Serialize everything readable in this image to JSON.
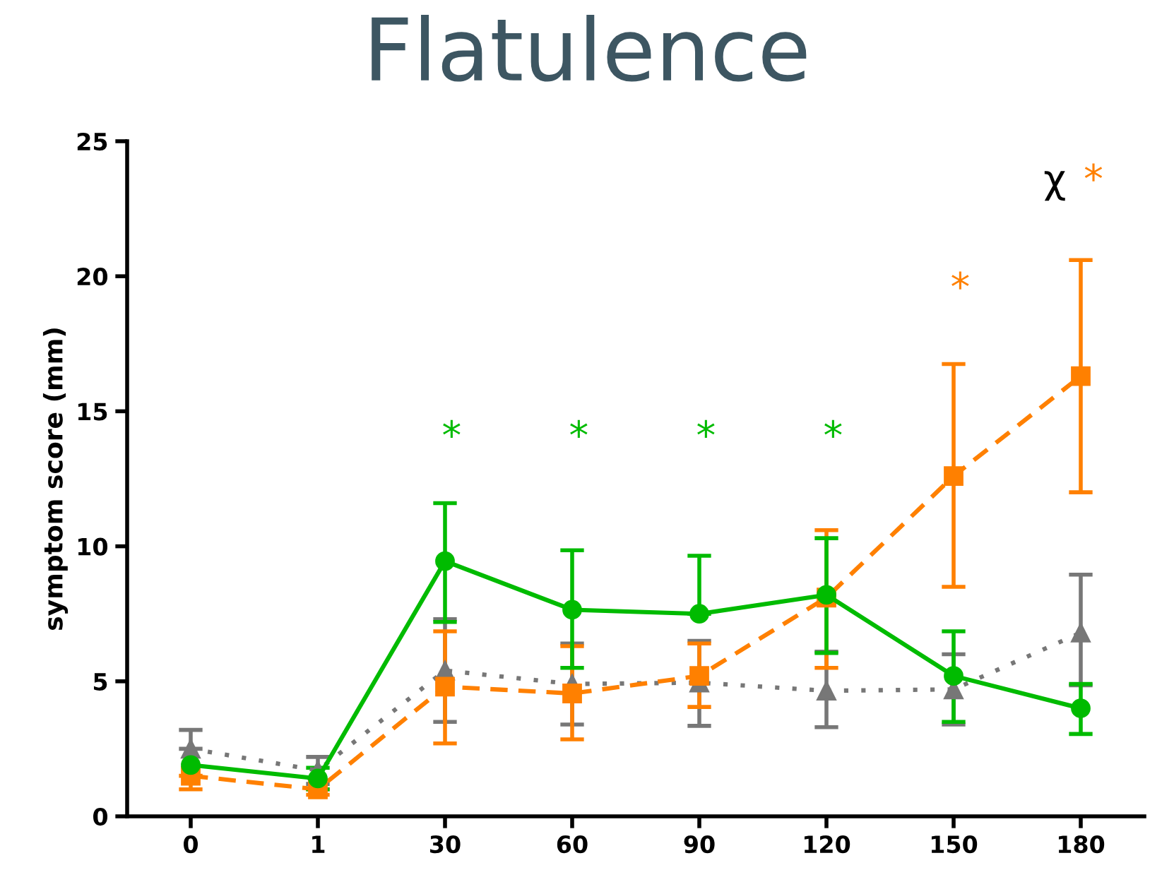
{
  "chart_data": {
    "type": "line",
    "title": "Flatulence",
    "ylabel": "symptom score (mm)",
    "categories": [
      "0",
      "1",
      "30",
      "60",
      "90",
      "120",
      "150",
      "180"
    ],
    "ylim": [
      0,
      25
    ],
    "yticks": [
      0,
      5,
      10,
      15,
      20,
      25
    ],
    "grid": false,
    "legend": false,
    "series": [
      {
        "color": "#777777",
        "marker": "triangle",
        "line_style": "dotted",
        "values": [
          2.5,
          1.7,
          5.4,
          4.9,
          4.95,
          4.65,
          4.7,
          6.8
        ],
        "errors": [
          [
            2.5,
            3.2
          ],
          [
            1.2,
            2.2
          ],
          [
            3.5,
            7.3
          ],
          [
            3.4,
            6.4
          ],
          [
            3.35,
            6.5
          ],
          [
            3.3,
            6.1
          ],
          [
            3.4,
            6.0
          ],
          [
            4.85,
            8.95
          ]
        ]
      },
      {
        "color": "#ff8000",
        "marker": "square",
        "line_style": "dashed",
        "values": [
          1.5,
          1.0,
          4.8,
          4.55,
          5.2,
          8.1,
          12.6,
          16.3
        ],
        "errors": [
          [
            1.0,
            1.5
          ],
          [
            0.8,
            1.0
          ],
          [
            2.7,
            6.85
          ],
          [
            2.85,
            6.3
          ],
          [
            4.05,
            6.4
          ],
          [
            5.5,
            10.6
          ],
          [
            8.5,
            16.75
          ],
          [
            12.0,
            20.6
          ]
        ]
      },
      {
        "color": "#00bb00",
        "marker": "circle",
        "line_style": "solid",
        "values": [
          1.9,
          1.4,
          9.45,
          7.65,
          7.5,
          8.2,
          5.2,
          4.0
        ],
        "errors": [
          null,
          [
            1.0,
            1.8
          ],
          [
            7.2,
            11.6
          ],
          [
            5.5,
            9.85
          ],
          [
            7.5,
            9.65
          ],
          [
            6.05,
            10.3
          ],
          [
            3.5,
            6.85
          ],
          [
            3.05,
            4.9
          ]
        ]
      }
    ],
    "annotations": [
      "*",
      "*",
      "*",
      "*",
      "*",
      "χ",
      "*"
    ]
  }
}
